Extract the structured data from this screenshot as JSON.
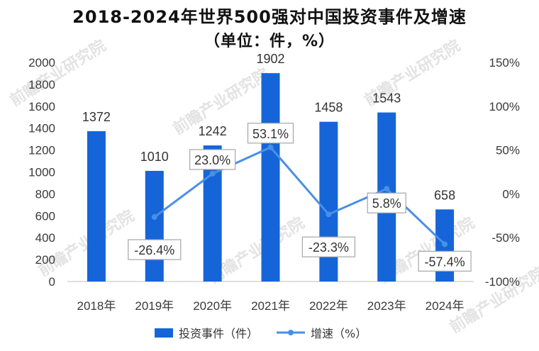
{
  "title_line1": "2018-2024年世界500强对中国投资事件及增速",
  "title_line2": "（单位：件，%）",
  "watermark": "前瞻产业研究院",
  "colors": {
    "bar": "#1565d8",
    "line": "#4a8fe7",
    "axis": "#bfbfbf",
    "label_border": "#a6a6a6"
  },
  "chart_data": {
    "type": "bar",
    "categories": [
      "2018年",
      "2019年",
      "2020年",
      "2021年",
      "2022年",
      "2023年",
      "2024年"
    ],
    "series": [
      {
        "name": "投资事件（件）",
        "type": "bar",
        "axis": "left",
        "values": [
          1372,
          1010,
          1242,
          1902,
          1458,
          1543,
          658
        ]
      },
      {
        "name": "增速（%）",
        "type": "line",
        "axis": "right",
        "values": [
          null,
          -26.4,
          23.0,
          53.1,
          -23.3,
          5.8,
          -57.4
        ],
        "labels": [
          "",
          "-26.4%",
          "23.0%",
          "53.1%",
          "-23.3%",
          "5.8%",
          "-57.4%"
        ]
      }
    ],
    "ylim_left": [
      0,
      2000
    ],
    "left_ticks": [
      "0",
      "200",
      "400",
      "600",
      "800",
      "1000",
      "1200",
      "1400",
      "1600",
      "1800",
      "2000"
    ],
    "ylim_right": [
      -100,
      150
    ],
    "right_ticks": [
      "-100%",
      "-50%",
      "0%",
      "50%",
      "100%",
      "150%"
    ],
    "legend_position": "bottom",
    "grid": false
  }
}
